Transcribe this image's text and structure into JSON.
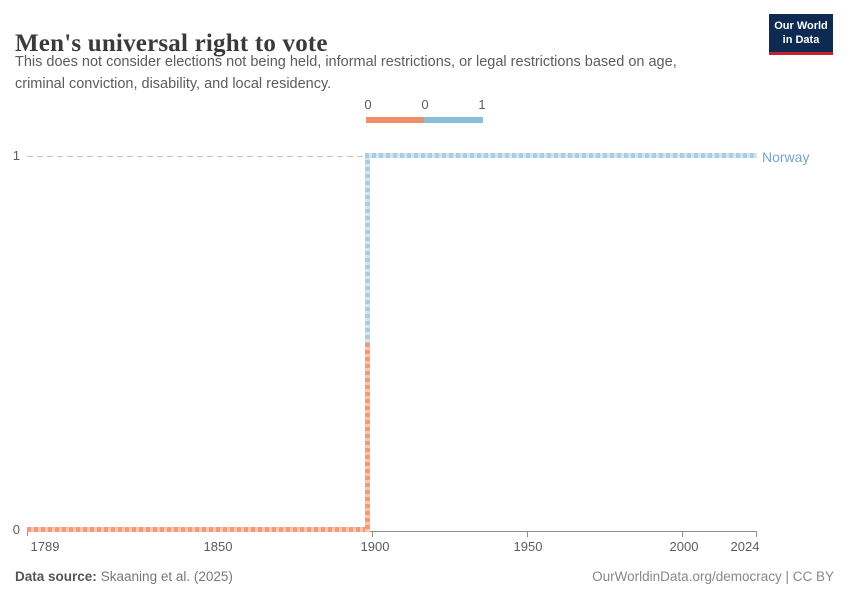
{
  "header": {
    "title": "Men's universal right to vote",
    "subtitle_lines": [
      "This does not consider elections not being held, informal restrictions, or legal restrictions based on age,",
      "criminal conviction, disability, and local residency."
    ],
    "logo": {
      "line1": "Our World",
      "line2": "in Data"
    }
  },
  "legend": {
    "labels": [
      "0",
      "0",
      "1"
    ]
  },
  "chart_data": {
    "type": "line",
    "subtype": "step",
    "title": "Men's universal right to vote",
    "entity": "Norway",
    "series": [
      {
        "name": "Norway",
        "points": [
          {
            "year": 1789,
            "value": 0
          },
          {
            "year": 1898,
            "value": 0
          },
          {
            "year": 1898,
            "value": 1
          },
          {
            "year": 2024,
            "value": 1
          }
        ]
      }
    ],
    "step_year": 1898,
    "xlim": [
      1789,
      2024
    ],
    "ylim": [
      0,
      1
    ],
    "x_ticks": [
      "1789",
      "1850",
      "1900",
      "1950",
      "2000",
      "2024"
    ],
    "y_ticks": [
      "0",
      "1"
    ],
    "grid": "horizontal dashed line at y=1",
    "legend_position": "top-center",
    "value_color_mapping": {
      "0": "orange",
      "1": "blue"
    }
  },
  "footer": {
    "source_label": "Data source:",
    "source_value": "Skaaning et al. (2025)",
    "license": "OurWorldinData.org/democracy | CC BY"
  },
  "colors": {
    "orange-line": "#f29b79",
    "orange-light": "#f8c7ae",
    "blue-line": "#a9cde3",
    "blue-light": "#d2e5f1",
    "legend-orange": "#ef8e6b",
    "legend-blue": "#8cbdd9",
    "norway-label": "#76a4c5",
    "brand-navy": "#0d2b52",
    "brand-red": "#c7202f",
    "grid": "#c6c6c6",
    "axis": "#8f8f8f"
  }
}
